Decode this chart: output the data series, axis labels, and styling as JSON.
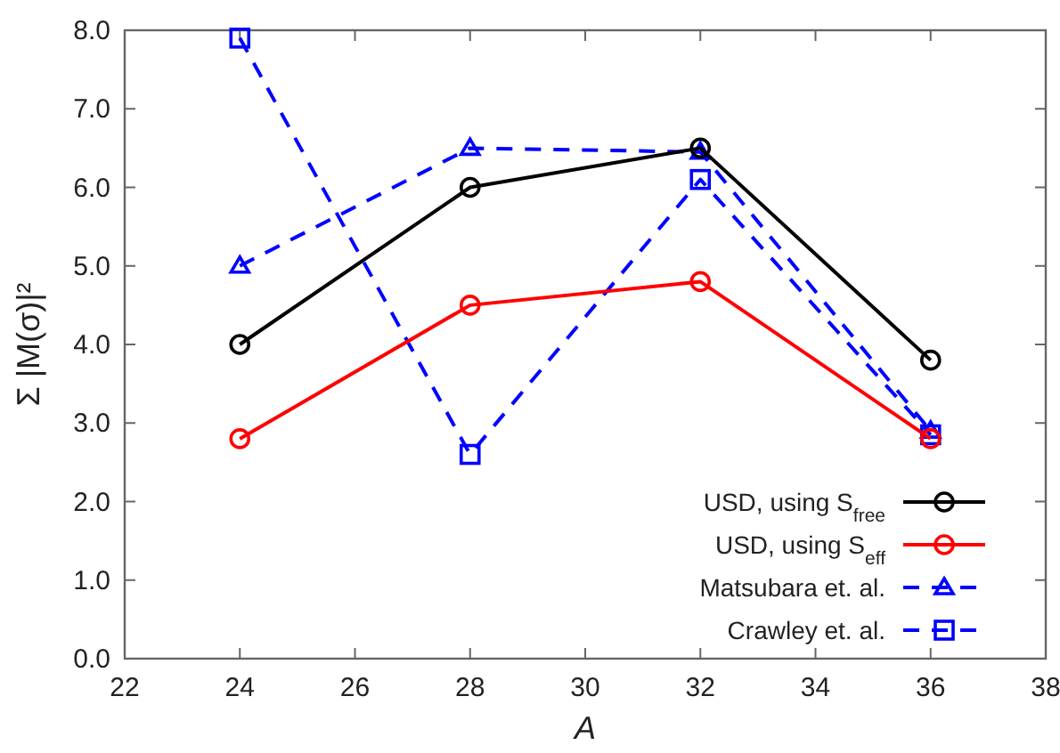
{
  "chart_data": {
    "type": "line",
    "xlabel": "A",
    "ylabel": "Σ |M(σ)|²",
    "x": [
      24,
      28,
      32,
      36
    ],
    "xlim": [
      22,
      38
    ],
    "xticks": [
      22,
      24,
      26,
      28,
      30,
      32,
      34,
      36,
      38
    ],
    "ylim": [
      0,
      8
    ],
    "yticks": [
      {
        "value": 0,
        "label": "0.0"
      },
      {
        "value": 1,
        "label": "1.0"
      },
      {
        "value": 2,
        "label": "2.0"
      },
      {
        "value": 3,
        "label": "3.0"
      },
      {
        "value": 4,
        "label": "4.0"
      },
      {
        "value": 5,
        "label": "5.0"
      },
      {
        "value": 6,
        "label": "6.0"
      },
      {
        "value": 7,
        "label": "7.0"
      },
      {
        "value": 8,
        "label": "8.0"
      }
    ],
    "grid": false,
    "legend": "bottom right",
    "series": [
      {
        "name": "USD, using S$_{free}$",
        "color": "#000000",
        "values": [
          4.0,
          6.0,
          6.5,
          3.8
        ],
        "marker": "circle",
        "line_style": "solid"
      },
      {
        "name": "USD, using S$_{eff}$",
        "color": "#ff0000",
        "values": [
          2.8,
          4.5,
          4.8,
          2.8
        ],
        "marker": "circle",
        "line_style": "solid"
      },
      {
        "name": "Matsubara et. al.",
        "color": "#0000ff",
        "values": [
          5.0,
          6.5,
          6.45,
          2.9
        ],
        "marker": "triangle",
        "line_style": "dashed"
      },
      {
        "name": "Crawley et. al.",
        "color": "#0000ff",
        "values": [
          7.9,
          2.6,
          6.1,
          2.85
        ],
        "marker": "square",
        "line_style": "dashed"
      }
    ]
  }
}
